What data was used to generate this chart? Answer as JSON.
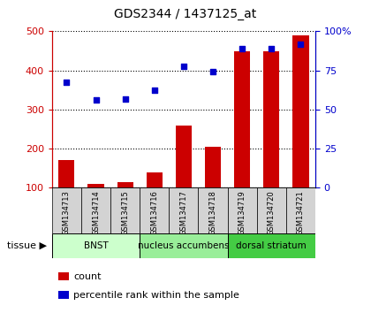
{
  "title": "GDS2344 / 1437125_at",
  "samples": [
    "GSM134713",
    "GSM134714",
    "GSM134715",
    "GSM134716",
    "GSM134717",
    "GSM134718",
    "GSM134719",
    "GSM134720",
    "GSM134721"
  ],
  "counts": [
    170,
    110,
    115,
    140,
    258,
    205,
    448,
    450,
    490
  ],
  "percentile_left_vals": [
    370,
    325,
    327,
    350,
    410,
    396,
    455,
    455,
    466
  ],
  "ylim_left": [
    100,
    500
  ],
  "yticks_left": [
    100,
    200,
    300,
    400,
    500
  ],
  "yticks_right_pos": [
    100,
    200,
    300,
    400,
    500
  ],
  "yticklabels_right": [
    "0",
    "25",
    "50",
    "75",
    "100%"
  ],
  "bar_color": "#cc0000",
  "scatter_color": "#0000cc",
  "tissue_groups": [
    {
      "label": "BNST",
      "start": 0,
      "end": 3,
      "color": "#ccffcc"
    },
    {
      "label": "nucleus accumbens",
      "start": 3,
      "end": 6,
      "color": "#99ee99"
    },
    {
      "label": "dorsal striatum",
      "start": 6,
      "end": 9,
      "color": "#44cc44"
    }
  ],
  "legend_items": [
    {
      "label": "count",
      "color": "#cc0000"
    },
    {
      "label": "percentile rank within the sample",
      "color": "#0000cc"
    }
  ],
  "left_tick_color": "#cc0000",
  "right_tick_color": "#0000cc",
  "bar_bottom": 100
}
